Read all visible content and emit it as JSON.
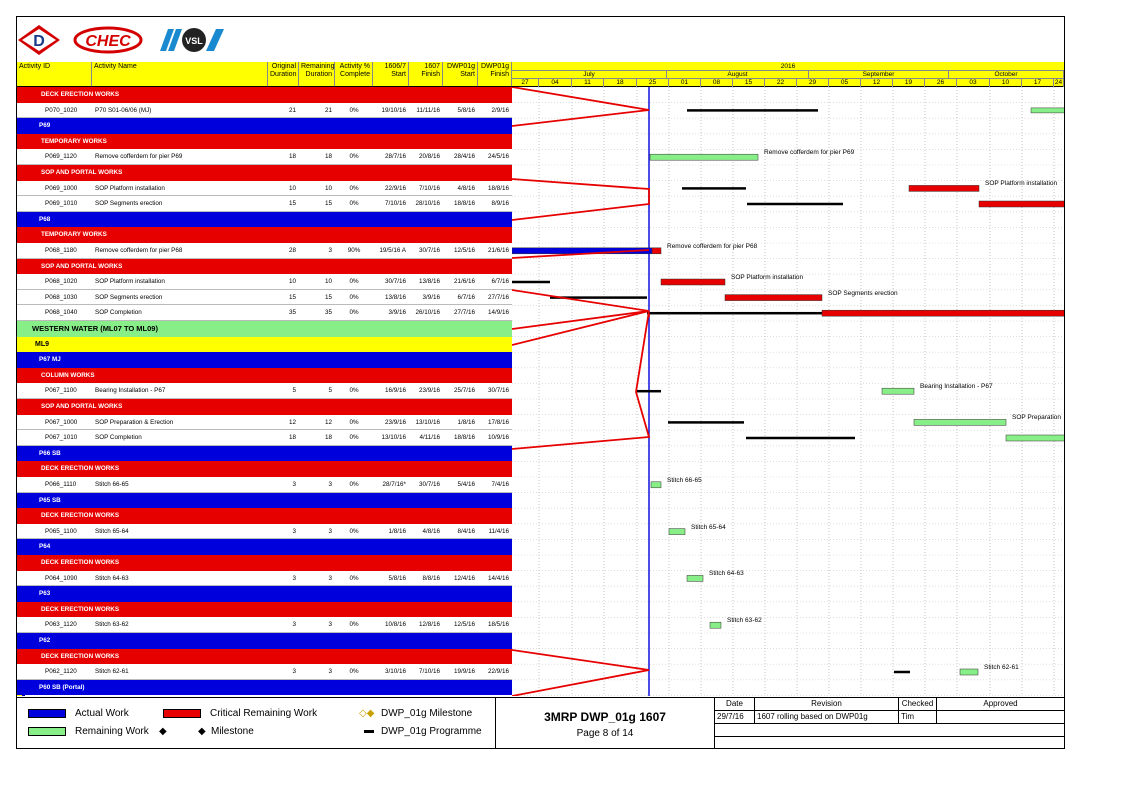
{
  "header": {
    "columns": [
      "Activity ID",
      "Activity Name",
      "Original Duration",
      "Remaining Duration",
      "Activity % Complete",
      "1606/7 Start",
      "1607 Finish",
      "DWP01g Start",
      "DWP01g Finish"
    ],
    "year": "2016",
    "months": [
      "July",
      "August",
      "September",
      "October"
    ],
    "weeks": [
      "27",
      "04",
      "11",
      "18",
      "25",
      "01",
      "08",
      "15",
      "22",
      "29",
      "05",
      "12",
      "19",
      "26",
      "03",
      "10",
      "17",
      "24"
    ]
  },
  "rows": [
    {
      "type": "red",
      "label": "DECK ERECTION WORKS"
    },
    {
      "type": "act",
      "id": "P070_1020",
      "name": "P70 S01-06/06 (MJ)",
      "od": "21",
      "rd": "21",
      "pct": "0%",
      "s": "19/10/16",
      "f": "11/11/16",
      "ds": "5/8/16",
      "df": "2/9/16"
    },
    {
      "type": "blue",
      "label": "P69"
    },
    {
      "type": "red",
      "label": "TEMPORARY WORKS"
    },
    {
      "type": "act",
      "id": "P069_1120",
      "name": "Remove cofferdem for pier P69",
      "od": "18",
      "rd": "18",
      "pct": "0%",
      "s": "28/7/16",
      "f": "20/8/16",
      "ds": "28/4/16",
      "df": "24/5/16"
    },
    {
      "type": "red",
      "label": "SOP AND PORTAL WORKS"
    },
    {
      "type": "act",
      "id": "P069_1000",
      "name": "SOP Platform installation",
      "od": "10",
      "rd": "10",
      "pct": "0%",
      "s": "22/9/16",
      "f": "7/10/16",
      "ds": "4/8/16",
      "df": "18/8/16"
    },
    {
      "type": "act",
      "id": "P069_1010",
      "name": "SOP Segments erection",
      "od": "15",
      "rd": "15",
      "pct": "0%",
      "s": "7/10/16",
      "f": "28/10/16",
      "ds": "18/8/16",
      "df": "8/9/16"
    },
    {
      "type": "blue",
      "label": "P68"
    },
    {
      "type": "red",
      "label": "TEMPORARY WORKS"
    },
    {
      "type": "act",
      "id": "P068_1180",
      "name": "Remove cofferdem for pier P68",
      "od": "28",
      "rd": "3",
      "pct": "90%",
      "s": "19/5/16 A",
      "f": "30/7/16",
      "ds": "12/5/16",
      "df": "21/6/16"
    },
    {
      "type": "red",
      "label": "SOP AND PORTAL WORKS"
    },
    {
      "type": "act",
      "id": "P068_1020",
      "name": "SOP Platform installation",
      "od": "10",
      "rd": "10",
      "pct": "0%",
      "s": "30/7/16",
      "f": "13/8/16",
      "ds": "21/6/16",
      "df": "6/7/16"
    },
    {
      "type": "act",
      "id": "P068_1030",
      "name": "SOP Segments erection",
      "od": "15",
      "rd": "15",
      "pct": "0%",
      "s": "13/8/16",
      "f": "3/9/16",
      "ds": "6/7/16",
      "df": "27/7/16"
    },
    {
      "type": "act",
      "id": "P068_1040",
      "name": "SOP Completion",
      "od": "35",
      "rd": "35",
      "pct": "0%",
      "s": "3/9/16",
      "f": "26/10/16",
      "ds": "27/7/16",
      "df": "14/9/16"
    },
    {
      "type": "green",
      "label": "WESTERN WATER (ML07 TO ML09)"
    },
    {
      "type": "yellow",
      "label": "ML9"
    },
    {
      "type": "blue",
      "label": "P67 MJ"
    },
    {
      "type": "red",
      "label": "COLUMN WORKS"
    },
    {
      "type": "act",
      "id": "P067_1100",
      "name": "Bearing Installation - P67",
      "od": "5",
      "rd": "5",
      "pct": "0%",
      "s": "16/9/16",
      "f": "23/9/16",
      "ds": "25/7/16",
      "df": "30/7/16"
    },
    {
      "type": "red",
      "label": "SOP AND PORTAL WORKS"
    },
    {
      "type": "act",
      "id": "P067_1000",
      "name": "SOP Preparation & Erection",
      "od": "12",
      "rd": "12",
      "pct": "0%",
      "s": "23/9/16",
      "f": "13/10/16",
      "ds": "1/8/16",
      "df": "17/8/16"
    },
    {
      "type": "act",
      "id": "P067_1010",
      "name": "SOP Completion",
      "od": "18",
      "rd": "18",
      "pct": "0%",
      "s": "13/10/16",
      "f": "4/11/16",
      "ds": "18/8/16",
      "df": "10/9/16"
    },
    {
      "type": "blue",
      "label": "P66 SB"
    },
    {
      "type": "red",
      "label": "DECK ERECTION WORKS"
    },
    {
      "type": "act",
      "id": "P066_1110",
      "name": "Stitch 66-65",
      "od": "3",
      "rd": "3",
      "pct": "0%",
      "s": "28/7/16*",
      "f": "30/7/16",
      "ds": "5/4/16",
      "df": "7/4/16"
    },
    {
      "type": "blue",
      "label": "P65 SB"
    },
    {
      "type": "red",
      "label": "DECK ERECTION WORKS"
    },
    {
      "type": "act",
      "id": "P065_1100",
      "name": "Stitch 65-64",
      "od": "3",
      "rd": "3",
      "pct": "0%",
      "s": "1/8/16",
      "f": "4/8/16",
      "ds": "8/4/16",
      "df": "11/4/16"
    },
    {
      "type": "blue",
      "label": "P64"
    },
    {
      "type": "red",
      "label": "DECK ERECTION WORKS"
    },
    {
      "type": "act",
      "id": "P064_1090",
      "name": "Stitch 64-63",
      "od": "3",
      "rd": "3",
      "pct": "0%",
      "s": "5/8/16",
      "f": "8/8/16",
      "ds": "12/4/16",
      "df": "14/4/16"
    },
    {
      "type": "blue",
      "label": "P63"
    },
    {
      "type": "red",
      "label": "DECK ERECTION WORKS"
    },
    {
      "type": "act",
      "id": "P063_1120",
      "name": "Stitch 63-62",
      "od": "3",
      "rd": "3",
      "pct": "0%",
      "s": "10/8/16",
      "f": "12/8/16",
      "ds": "12/5/16",
      "df": "18/5/16"
    },
    {
      "type": "blue",
      "label": "P62"
    },
    {
      "type": "red",
      "label": "DECK ERECTION WORKS"
    },
    {
      "type": "act",
      "id": "P062_1120",
      "name": "Stitch 62-61",
      "od": "3",
      "rd": "3",
      "pct": "0%",
      "s": "3/10/16",
      "f": "7/10/16",
      "ds": "19/9/16",
      "df": "22/9/16"
    },
    {
      "type": "blue",
      "label": "P60 SB (Portal)"
    }
  ],
  "bar_labels": [
    "Remove cofferdem for pier P69",
    "SOP Platform installation",
    "Remove cofferdem for pier P68",
    "SOP Platform installation",
    "SOP Segments erection",
    "Bearing Installation - P67",
    "SOP Preparation",
    "Stitch 66-65",
    "Stitch 65-64",
    "Stitch 64-63",
    "Stitch 63-62",
    "Stitch 62-61"
  ],
  "legend": {
    "actual": "Actual Work",
    "critical": "Critical Remaining Work",
    "milestone_dwp": "DWP_01g Milestone",
    "remaining": "Remaining Work",
    "milestone": "Milestone",
    "programme": "DWP_01g Programme"
  },
  "title_block": {
    "title": "3MRP DWP_01g 1607",
    "page": "Page 8 of 14"
  },
  "revision": {
    "headers": [
      "Date",
      "Revision",
      "Checked",
      "Approved"
    ],
    "date": "29/7/16",
    "revision": "1607 rolling based on DWP01g",
    "checked": "Tim",
    "approved": ""
  },
  "colors": {
    "critical": "#e60000",
    "actual": "#0000dd",
    "remaining": "#88ee88",
    "header": "#ffff00"
  }
}
